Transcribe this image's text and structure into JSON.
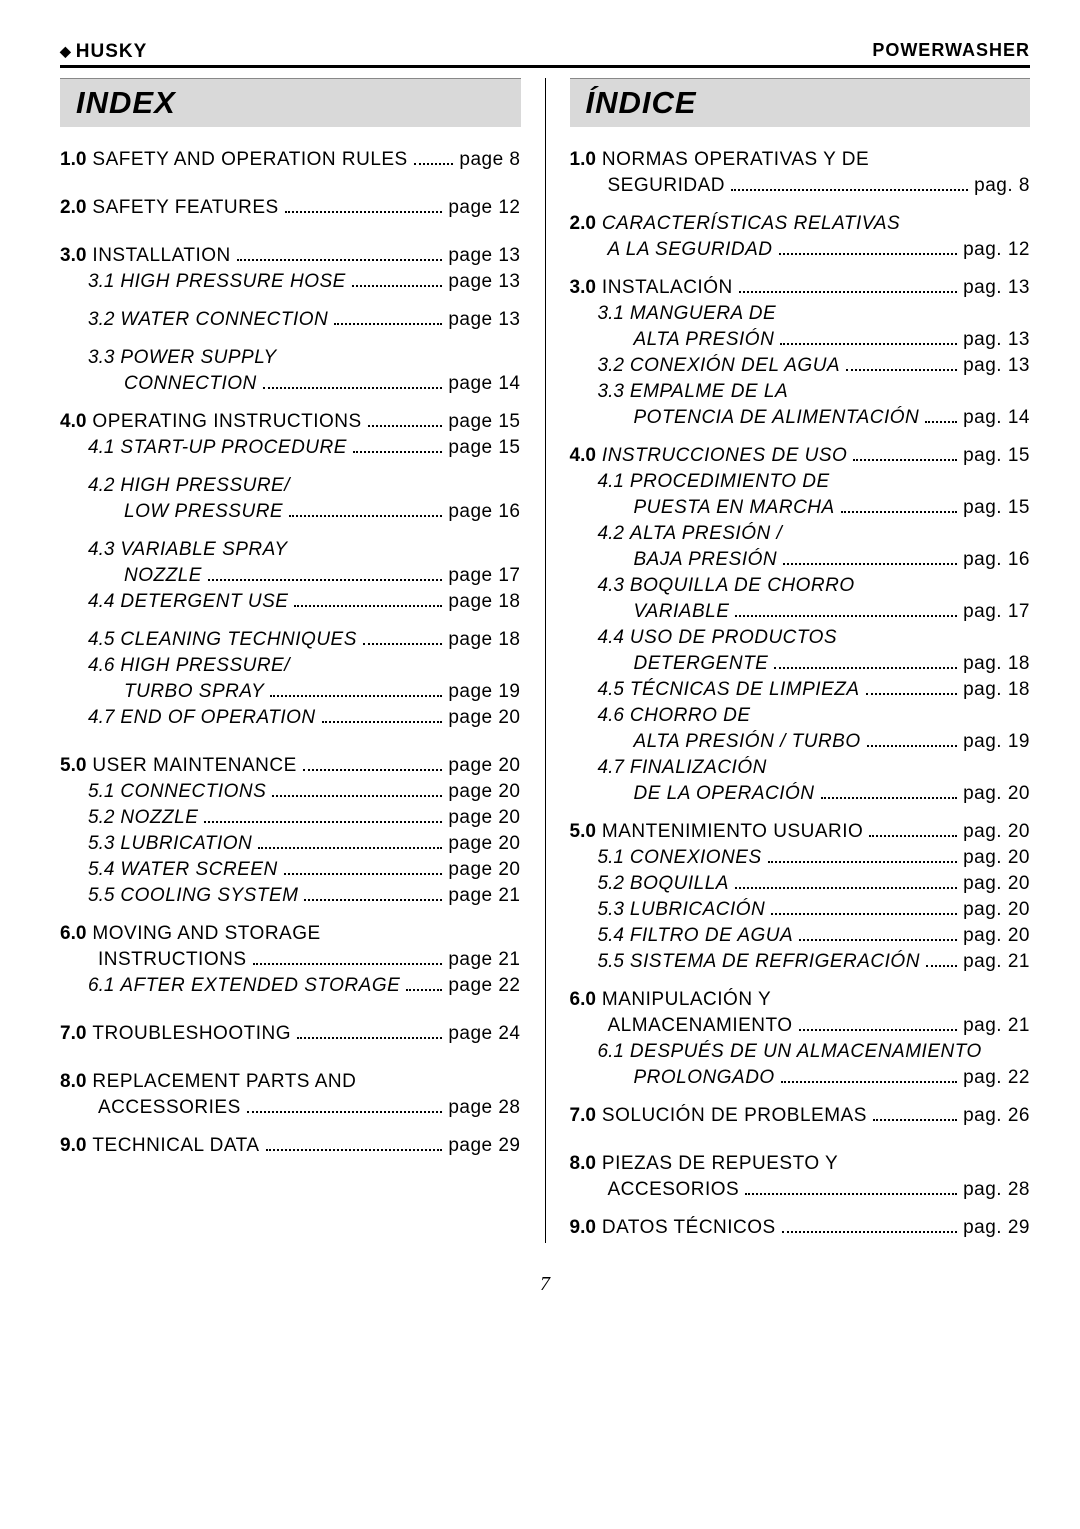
{
  "header": {
    "brand_left": "HUSKY",
    "brand_right": "POWERWASHER"
  },
  "page_number": "7",
  "page_word": {
    "en": " page ",
    "es": " pag. "
  },
  "left": {
    "title": "INDEX",
    "items": [
      {
        "n": "1.0",
        "t": "SAFETY AND OPERATION RULES",
        "p": "8",
        "gap": "spaced"
      },
      {
        "n": "2.0",
        "t": "SAFETY FEATURES",
        "p": "12",
        "gap": "spaced"
      },
      {
        "n": "3.0",
        "t": "INSTALLATION",
        "p": "13"
      },
      {
        "sub": true,
        "n": "3.1",
        "t": "HIGH PRESSURE HOSE",
        "p": "13",
        "gap": "mid-spaced"
      },
      {
        "sub": true,
        "n": "3.2",
        "t": "WATER CONNECTION",
        "p": "13",
        "gap": "mid-spaced"
      },
      {
        "sub": true,
        "n": "3.3",
        "t": "POWER SUPPLY",
        "wrap": true
      },
      {
        "sub2": true,
        "t": "CONNECTION",
        "p": "14",
        "gap": "mid-spaced"
      },
      {
        "n": "4.0",
        "t": "OPERATING INSTRUCTIONS",
        "p": "15"
      },
      {
        "sub": true,
        "n": "4.1",
        "t": "START-UP PROCEDURE",
        "p": "15",
        "gap": "mid-spaced"
      },
      {
        "sub": true,
        "n": "4.2",
        "t": "HIGH PRESSURE/",
        "wrap": true
      },
      {
        "sub2": true,
        "t": "LOW PRESSURE",
        "p": "16",
        "gap": "mid-spaced"
      },
      {
        "sub": true,
        "n": "4.3",
        "t": "VARIABLE SPRAY",
        "wrap": true
      },
      {
        "sub2": true,
        "t": "NOZZLE",
        "p": "17"
      },
      {
        "sub": true,
        "n": "4.4",
        "t": "DETERGENT USE",
        "p": "18",
        "gap": "mid-spaced"
      },
      {
        "sub": true,
        "n": "4.5",
        "t": "CLEANING TECHNIQUES",
        "p": "18"
      },
      {
        "sub": true,
        "n": "4.6",
        "t": "HIGH PRESSURE/",
        "wrap": true
      },
      {
        "sub2": true,
        "t": "TURBO SPRAY",
        "p": "19"
      },
      {
        "sub": true,
        "n": "4.7",
        "t": "END OF OPERATION",
        "p": "20",
        "gap": "spaced"
      },
      {
        "n": "5.0",
        "t": "USER MAINTENANCE",
        "p": "20"
      },
      {
        "sub": true,
        "n": "5.1",
        "t": "CONNECTIONS",
        "p": "20"
      },
      {
        "sub": true,
        "n": "5.2",
        "t": "NOZZLE",
        "p": "20"
      },
      {
        "sub": true,
        "n": "5.3",
        "t": "LUBRICATION",
        "p": "20"
      },
      {
        "sub": true,
        "n": "5.4",
        "t": "WATER SCREEN",
        "p": "20"
      },
      {
        "sub": true,
        "n": "5.5",
        "t": "COOLING SYSTEM",
        "p": "21",
        "gap": "mid-spaced"
      },
      {
        "n": "6.0",
        "t": "MOVING AND STORAGE",
        "wrap": true,
        "main": true
      },
      {
        "mainwrap": true,
        "t": "INSTRUCTIONS",
        "p": "21"
      },
      {
        "sub": true,
        "n": "6.1",
        "t": "AFTER EXTENDED STORAGE",
        "p": "22",
        "gap": "spaced"
      },
      {
        "n": "7.0",
        "t": "TROUBLESHOOTING",
        "p": "24",
        "gap": "spaced"
      },
      {
        "n": "8.0",
        "t": "REPLACEMENT PARTS AND",
        "wrap": true,
        "main": true
      },
      {
        "mainwrap": true,
        "t": "ACCESSORIES",
        "p": "28",
        "gap": "mid-spaced"
      },
      {
        "n": "9.0",
        "t": "TECHNICAL DATA",
        "p": "29"
      }
    ]
  },
  "right": {
    "title": "ÍNDICE",
    "items": [
      {
        "n": "1.0",
        "t": "NORMAS OPERATIVAS Y DE",
        "wrap": true,
        "main": true
      },
      {
        "mainwrap": true,
        "t": "SEGURIDAD",
        "p": "8",
        "gap": "mid-spaced"
      },
      {
        "n": "2.0",
        "t": "CARACTERÍSTICAS RELATIVAS",
        "wrap": true,
        "main": true,
        "italic_main": true
      },
      {
        "mainwrap": true,
        "t": "A LA SEGURIDAD",
        "p": "12",
        "gap": "mid-spaced",
        "italic_main": true
      },
      {
        "n": "3.0",
        "t": "INSTALACIÓN",
        "p": "13"
      },
      {
        "sub": true,
        "n": "3.1",
        "t": "MANGUERA DE",
        "wrap": true
      },
      {
        "sub2": true,
        "t": "ALTA PRESIÓN",
        "p": "13"
      },
      {
        "sub": true,
        "n": "3.2",
        "t": "CONEXIÓN DEL AGUA",
        "p": "13"
      },
      {
        "sub": true,
        "n": "3.3",
        "t": "EMPALME DE LA",
        "wrap": true
      },
      {
        "sub2": true,
        "t": "POTENCIA DE ALIMENTACIÓN",
        "p": "14",
        "gap": "mid-spaced"
      },
      {
        "n": "4.0",
        "t": "INSTRUCCIONES DE USO",
        "p": "15",
        "italic_main": true
      },
      {
        "sub": true,
        "n": "4.1",
        "t": "PROCEDIMIENTO DE",
        "wrap": true
      },
      {
        "sub2": true,
        "t": "PUESTA EN MARCHA",
        "p": "15"
      },
      {
        "sub": true,
        "n": "4.2",
        "t": "ALTA PRESIÓN /",
        "wrap": true
      },
      {
        "sub2": true,
        "t": "BAJA PRESIÓN",
        "p": "16"
      },
      {
        "sub": true,
        "n": "4.3",
        "t": "BOQUILLA DE CHORRO",
        "wrap": true
      },
      {
        "sub2": true,
        "t": "VARIABLE",
        "p": "17"
      },
      {
        "sub": true,
        "n": "4.4",
        "t": "USO DE PRODUCTOS",
        "wrap": true
      },
      {
        "sub2": true,
        "t": "DETERGENTE",
        "p": "18"
      },
      {
        "sub": true,
        "n": "4.5",
        "t": "TÉCNICAS DE LIMPIEZA",
        "p": "18"
      },
      {
        "sub": true,
        "n": "4.6",
        "t": "CHORRO DE",
        "wrap": true
      },
      {
        "sub2": true,
        "t": "ALTA PRESIÓN / TURBO",
        "p": "19"
      },
      {
        "sub": true,
        "n": "4.7",
        "t": "FINALIZACIÓN",
        "wrap": true
      },
      {
        "sub2": true,
        "t": "DE LA OPERACIÓN",
        "p": "20",
        "gap": "mid-spaced"
      },
      {
        "n": "5.0",
        "t": "MANTENIMIENTO USUARIO",
        "p": "20"
      },
      {
        "sub": true,
        "n": "5.1",
        "t": "CONEXIONES",
        "p": "20"
      },
      {
        "sub": true,
        "n": "5.2",
        "t": "BOQUILLA",
        "p": "20"
      },
      {
        "sub": true,
        "n": "5.3",
        "t": "LUBRICACIÓN",
        "p": "20"
      },
      {
        "sub": true,
        "n": "5.4",
        "t": "FILTRO DE AGUA",
        "p": "20"
      },
      {
        "sub": true,
        "n": "5.5",
        "t": "SISTEMA DE REFRIGERACIÓN",
        "p": "21",
        "gap": "mid-spaced"
      },
      {
        "n": "6.0",
        "t": "MANIPULACIÓN Y",
        "wrap": true,
        "main": true
      },
      {
        "mainwrap": true,
        "t": "ALMACENAMIENTO",
        "p": "21"
      },
      {
        "sub": true,
        "n": "6.1",
        "t": "DESPUÉS DE UN ALMACENAMIENTO",
        "wrap": true
      },
      {
        "sub2": true,
        "t": "PROLONGADO",
        "p": "22",
        "gap": "mid-spaced"
      },
      {
        "n": "7.0",
        "t": "SOLUCIÓN DE PROBLEMAS",
        "p": "26",
        "gap": "spaced"
      },
      {
        "n": "8.0",
        "t": "PIEZAS DE REPUESTO Y",
        "wrap": true,
        "main": true
      },
      {
        "mainwrap": true,
        "t": "ACCESORIOS",
        "p": "28",
        "gap": "mid-spaced"
      },
      {
        "n": "9.0",
        "t": "DATOS TÉCNICOS",
        "p": "29"
      }
    ]
  }
}
